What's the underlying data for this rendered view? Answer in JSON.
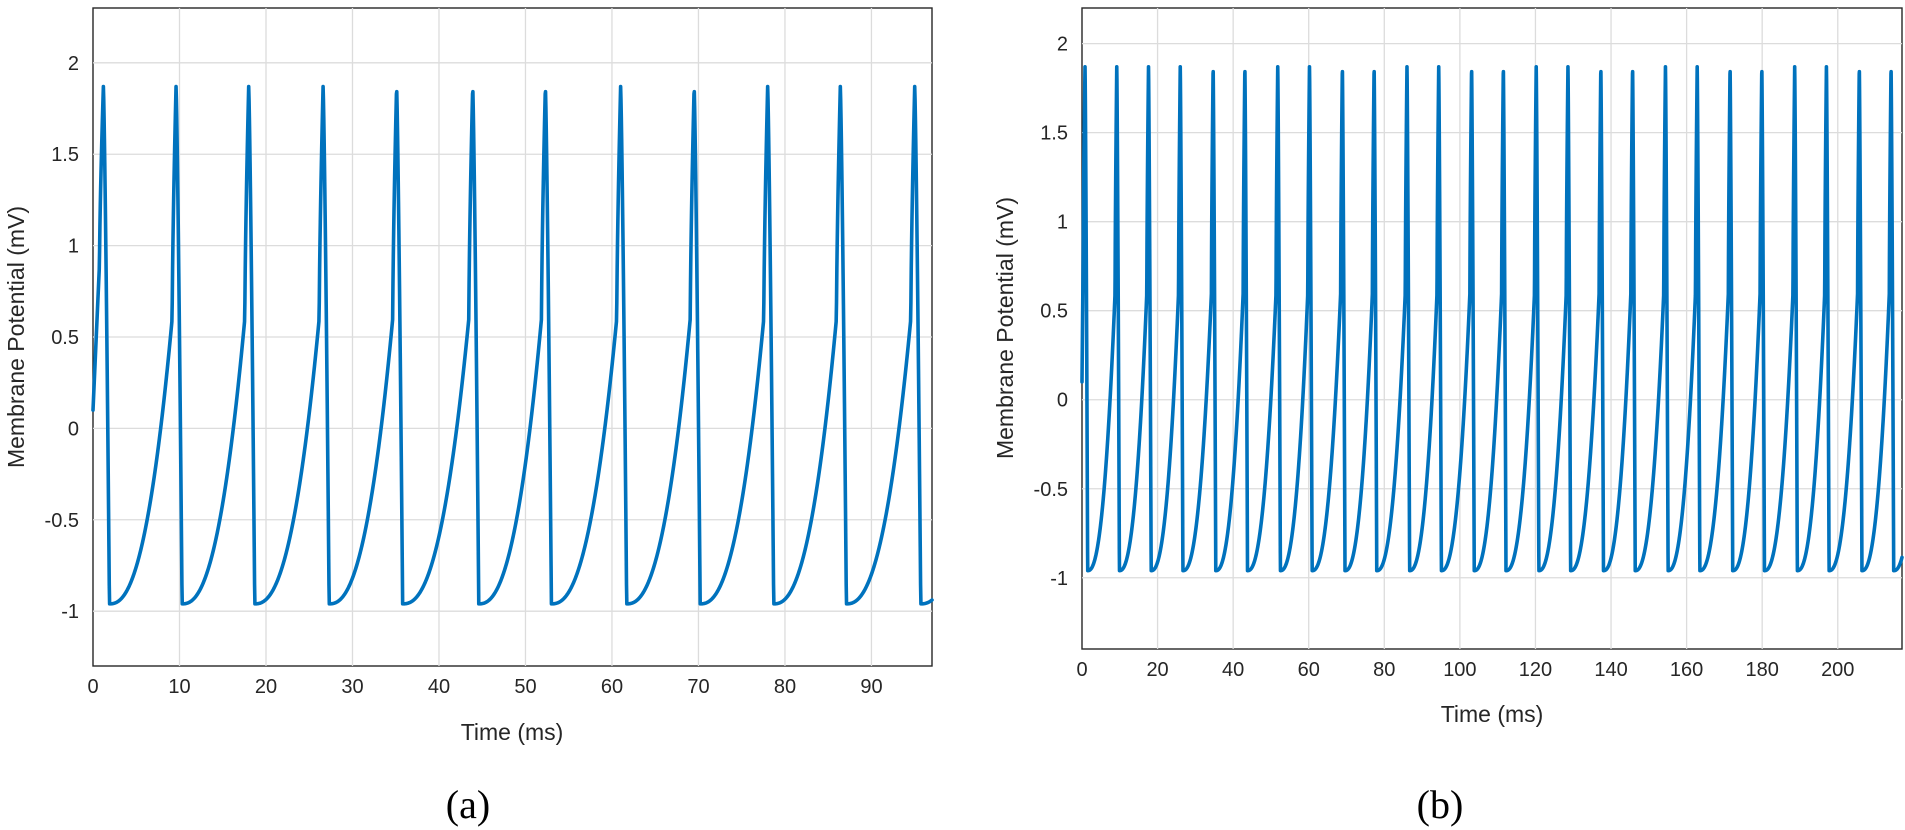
{
  "chart_data": [
    {
      "type": "line",
      "panel_label": "(a)",
      "title": "",
      "xlabel": "Time (ms)",
      "ylabel": "Membrane Potential (mV)",
      "xlim": [
        0,
        97
      ],
      "ylim": [
        -1.3,
        2.3
      ],
      "xticks": [
        0,
        10,
        20,
        30,
        40,
        50,
        60,
        70,
        80,
        90
      ],
      "yticks": [
        -1,
        -0.5,
        0,
        0.5,
        1,
        1.5,
        2
      ],
      "ytick_labels": [
        "-1",
        "-0.5",
        "0",
        "0.5",
        "1",
        "1.5",
        "2"
      ],
      "grid": true,
      "series": [
        {
          "name": "Membrane Potential",
          "color": "#0072bd",
          "initial_value": 0.1,
          "spike_times": [
            1.2,
            9.6,
            18.0,
            26.6,
            35.1,
            43.9,
            52.3,
            61.0,
            69.5,
            78.0,
            86.4,
            95.0
          ],
          "spike_peak": 1.87,
          "trough": -0.96,
          "end_time": 97
        }
      ]
    },
    {
      "type": "line",
      "panel_label": "(b)",
      "title": "",
      "xlabel": "Time (ms)",
      "ylabel": "Membrane Potential (mV)",
      "xlim": [
        0,
        217
      ],
      "ylim": [
        -1.4,
        2.2
      ],
      "xticks": [
        0,
        20,
        40,
        60,
        80,
        100,
        120,
        140,
        160,
        180,
        200
      ],
      "yticks": [
        -1,
        -0.5,
        0,
        0.5,
        1,
        1.5,
        2
      ],
      "ytick_labels": [
        "-1",
        "-0.5",
        "0",
        "0.5",
        "1",
        "1.5",
        "2"
      ],
      "grid": true,
      "series": [
        {
          "name": "Membrane Potential",
          "color": "#0072bd",
          "initial_value": 0.1,
          "spike_times": [
            0.8,
            9.2,
            17.6,
            26.0,
            34.7,
            43.1,
            51.8,
            60.2,
            68.9,
            77.3,
            86.0,
            94.4,
            103.1,
            111.5,
            120.2,
            128.6,
            137.3,
            145.7,
            154.4,
            162.8,
            171.5,
            179.9,
            188.6,
            197.0,
            205.7,
            214.1
          ],
          "spike_peak": 1.87,
          "trough": -0.96,
          "end_time": 217
        }
      ]
    }
  ]
}
